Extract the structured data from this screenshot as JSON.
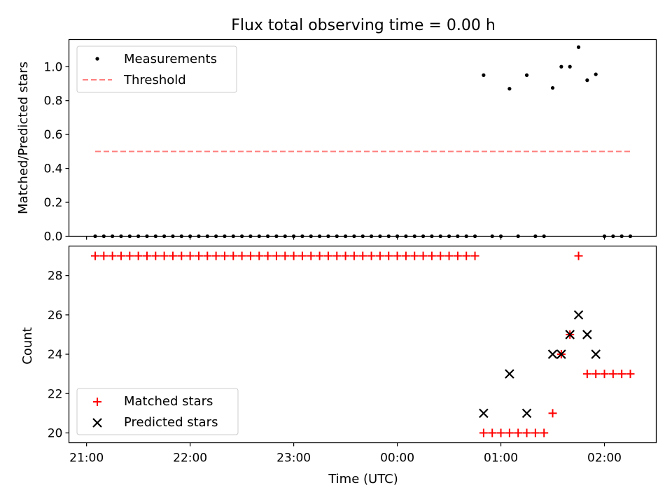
{
  "chart_data": [
    {
      "type": "scatter",
      "title": "Flux total observing time = 0.00 h",
      "xlabel": "",
      "ylabel": "Matched/Predicted stars",
      "xlim": [
        20.83,
        2.5
      ],
      "ylim": [
        0,
        1.16
      ],
      "yticks": [
        "0.0",
        "0.2",
        "0.4",
        "0.6",
        "0.8",
        "1.0"
      ],
      "legend": {
        "position": "top-left",
        "entries": [
          "Measurements",
          "Threshold"
        ]
      },
      "series": [
        {
          "name": "Measurements",
          "marker": "dot",
          "color": "#000000",
          "x": [
            "21:05",
            "21:10",
            "21:15",
            "21:20",
            "21:25",
            "21:30",
            "21:35",
            "21:40",
            "21:45",
            "21:50",
            "21:55",
            "22:00",
            "22:05",
            "22:10",
            "22:15",
            "22:20",
            "22:25",
            "22:30",
            "22:35",
            "22:40",
            "22:45",
            "22:50",
            "22:55",
            "23:00",
            "23:05",
            "23:10",
            "23:15",
            "23:20",
            "23:25",
            "23:30",
            "23:35",
            "23:40",
            "23:45",
            "23:50",
            "23:55",
            "00:00",
            "00:05",
            "00:10",
            "00:15",
            "00:20",
            "00:25",
            "00:30",
            "00:35",
            "00:40",
            "00:45",
            "00:50",
            "00:55",
            "01:00",
            "01:05",
            "01:10",
            "01:15",
            "01:20",
            "01:25",
            "01:30",
            "01:35",
            "01:40",
            "01:45",
            "01:50",
            "01:55",
            "02:00",
            "02:05",
            "02:10",
            "02:15"
          ],
          "y": [
            0,
            0,
            0,
            0,
            0,
            0,
            0,
            0,
            0,
            0,
            0,
            0,
            0,
            0,
            0,
            0,
            0,
            0,
            0,
            0,
            0,
            0,
            0,
            0,
            0,
            0,
            0,
            0,
            0,
            0,
            0,
            0,
            0,
            0,
            0,
            0,
            0,
            0,
            0,
            0,
            0,
            0,
            0,
            0,
            0,
            0.95,
            0,
            0,
            0.87,
            0,
            0.95,
            0,
            0,
            0.875,
            1.0,
            1.0,
            1.115,
            0.92,
            0.955,
            0,
            0,
            0,
            0
          ]
        },
        {
          "name": "Threshold",
          "style": "dashed",
          "color": "#ff7f7f",
          "x": [
            "21:05",
            "02:15"
          ],
          "y": [
            0.5,
            0.5
          ]
        }
      ]
    },
    {
      "type": "scatter",
      "xlabel": "Time (UTC)",
      "ylabel": "Count",
      "xlim": [
        20.83,
        2.5
      ],
      "ylim": [
        19.5,
        29.5
      ],
      "xticks": [
        "21:00",
        "22:00",
        "23:00",
        "00:00",
        "01:00",
        "02:00"
      ],
      "yticks": [
        "20",
        "22",
        "24",
        "26",
        "28"
      ],
      "legend": {
        "position": "bottom-left",
        "entries": [
          "Matched stars",
          "Predicted stars"
        ]
      },
      "series": [
        {
          "name": "Matched stars",
          "marker": "plus",
          "color": "#ff0000",
          "x": [
            "21:05",
            "21:10",
            "21:15",
            "21:20",
            "21:25",
            "21:30",
            "21:35",
            "21:40",
            "21:45",
            "21:50",
            "21:55",
            "22:00",
            "22:05",
            "22:10",
            "22:15",
            "22:20",
            "22:25",
            "22:30",
            "22:35",
            "22:40",
            "22:45",
            "22:50",
            "22:55",
            "23:00",
            "23:05",
            "23:10",
            "23:15",
            "23:20",
            "23:25",
            "23:30",
            "23:35",
            "23:40",
            "23:45",
            "23:50",
            "23:55",
            "00:00",
            "00:05",
            "00:10",
            "00:15",
            "00:20",
            "00:25",
            "00:30",
            "00:35",
            "00:40",
            "00:45",
            "00:50",
            "00:55",
            "01:00",
            "01:05",
            "01:10",
            "01:15",
            "01:20",
            "01:25",
            "01:30",
            "01:35",
            "01:40",
            "01:45",
            "01:50",
            "01:55",
            "02:00",
            "02:05",
            "02:10",
            "02:15"
          ],
          "y": [
            29,
            29,
            29,
            29,
            29,
            29,
            29,
            29,
            29,
            29,
            29,
            29,
            29,
            29,
            29,
            29,
            29,
            29,
            29,
            29,
            29,
            29,
            29,
            29,
            29,
            29,
            29,
            29,
            29,
            29,
            29,
            29,
            29,
            29,
            29,
            29,
            29,
            29,
            29,
            29,
            29,
            29,
            29,
            29,
            29,
            20,
            20,
            20,
            20,
            20,
            20,
            20,
            20,
            21,
            24,
            25,
            29,
            23,
            23,
            23,
            23,
            23,
            23
          ]
        },
        {
          "name": "Predicted stars",
          "marker": "x",
          "color": "#000000",
          "x": [
            "00:50",
            "01:05",
            "01:15",
            "01:30",
            "01:35",
            "01:40",
            "01:45",
            "01:50",
            "01:55"
          ],
          "y": [
            21,
            23,
            21,
            24,
            24,
            25,
            26,
            25,
            24
          ]
        }
      ]
    }
  ]
}
